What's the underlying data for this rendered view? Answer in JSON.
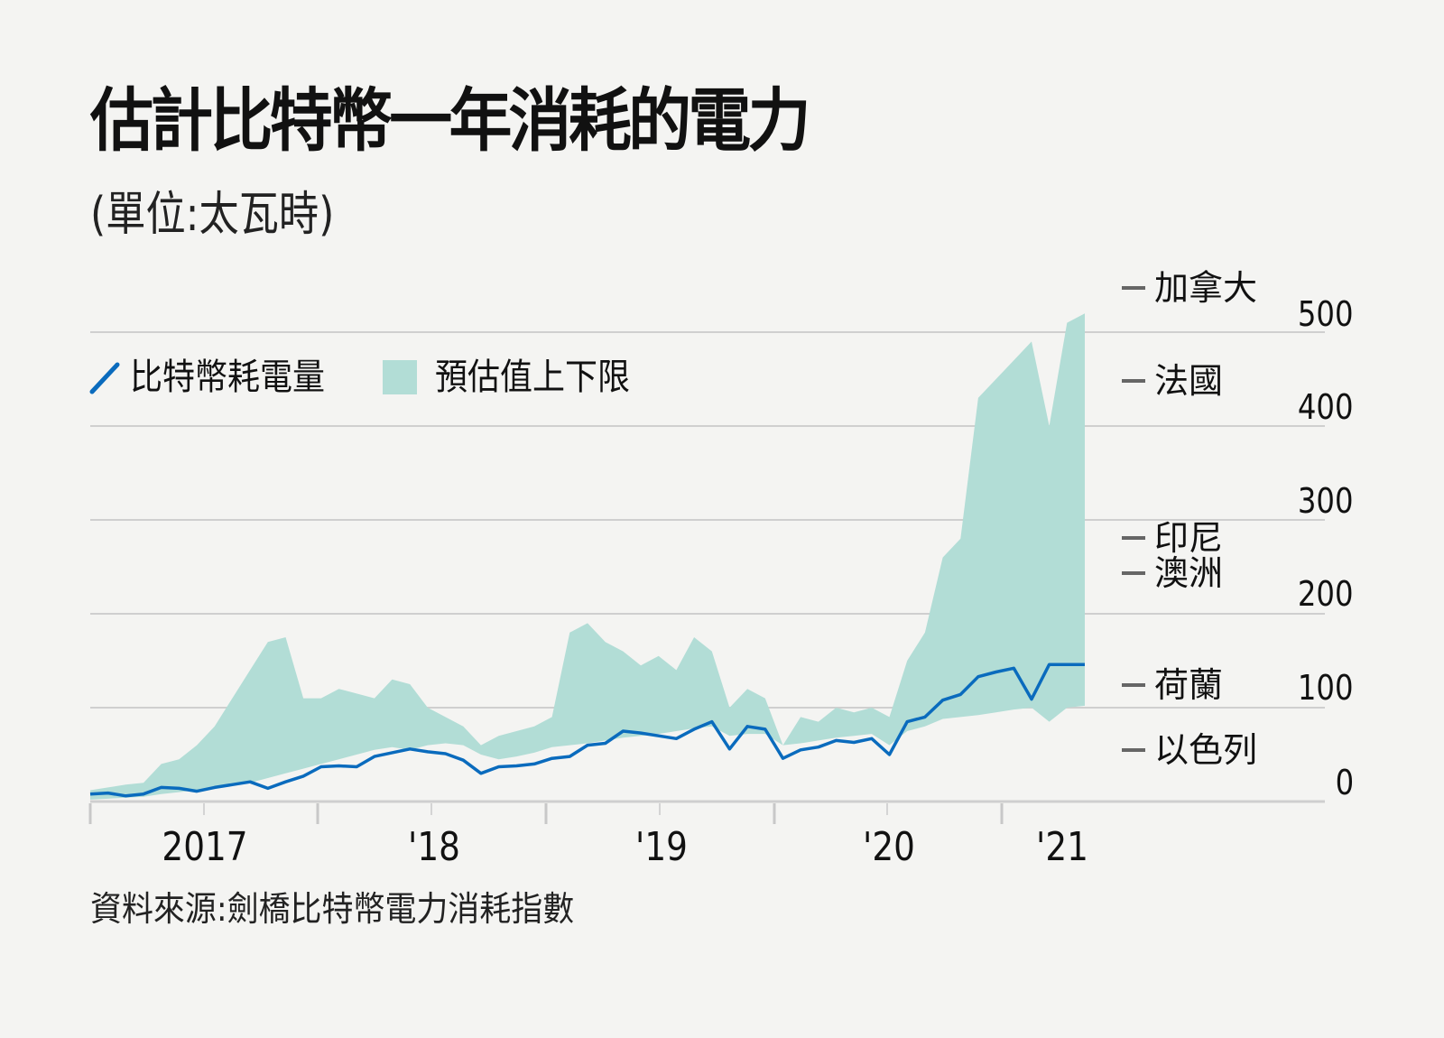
{
  "title": "估計比特幣一年消耗的電力",
  "subtitle": "(單位:太瓦時)",
  "legend": {
    "line_label": "比特幣耗電量",
    "area_label": "預估值上下限",
    "line_icon": "diagonal-line-swatch",
    "area_icon": "square-swatch"
  },
  "colors": {
    "background": "#f4f4f2",
    "line": "#0a6bbd",
    "band": "#b2ddd6",
    "grid": "#cfcfcf",
    "reference_dash": "#666666"
  },
  "y_axis": {
    "ticks": [
      "0",
      "100",
      "200",
      "300",
      "400",
      "500"
    ]
  },
  "x_axis": {
    "labels": [
      "2017",
      "'18",
      "'19",
      "'20",
      "'21"
    ]
  },
  "reference_countries": [
    {
      "name": "加拿大",
      "value": 530
    },
    {
      "name": "法國",
      "value": 450
    },
    {
      "name": "印尼",
      "value": 280
    },
    {
      "name": "澳洲",
      "value": 245
    },
    {
      "name": "荷蘭",
      "value": 120
    },
    {
      "name": "以色列",
      "value": 55
    }
  ],
  "source": "資料來源:劍橋比特幣電力消耗指數",
  "chart_data": {
    "type": "area",
    "title": "估計比特幣一年消耗的電力",
    "subtitle": "(單位:太瓦時)",
    "xlabel": "",
    "ylabel": "太瓦時 (TWh)",
    "ylim": [
      0,
      500
    ],
    "grid": true,
    "legend_position": "top-left",
    "x_tick_labels": [
      "2017",
      "'18",
      "'19",
      "'20",
      "'21"
    ],
    "x_range": [
      "2016-08",
      "2021-05"
    ],
    "series": [
      {
        "name": "比特幣耗電量",
        "type": "line",
        "x": [
          "2016-08",
          "2016-09",
          "2016-10",
          "2016-12",
          "2017-01",
          "2017-02",
          "2017-03",
          "2017-04",
          "2017-05",
          "2017-06",
          "2017-07",
          "2017-08",
          "2017-09",
          "2017-10",
          "2017-11",
          "2017-12",
          "2018-01",
          "2018-02",
          "2018-03",
          "2018-04",
          "2018-05",
          "2018-06",
          "2018-07",
          "2018-08",
          "2018-09",
          "2018-10",
          "2018-11",
          "2018-12",
          "2019-01",
          "2019-02",
          "2019-03",
          "2019-04",
          "2019-05",
          "2019-06",
          "2019-07",
          "2019-08",
          "2019-09",
          "2019-10",
          "2019-11",
          "2019-12",
          "2020-01",
          "2020-02",
          "2020-03",
          "2020-04",
          "2020-05",
          "2020-06",
          "2020-07",
          "2020-08",
          "2020-09",
          "2020-10",
          "2020-11",
          "2020-12",
          "2021-01",
          "2021-02",
          "2021-03",
          "2021-04",
          "2021-05"
        ],
        "values": [
          8,
          9,
          6,
          8,
          15,
          14,
          11,
          15,
          18,
          21,
          14,
          21,
          27,
          37,
          38,
          37,
          48,
          52,
          56,
          53,
          51,
          44,
          30,
          37,
          38,
          40,
          46,
          48,
          60,
          62,
          75,
          73,
          70,
          67,
          77,
          85,
          56,
          80,
          77,
          46,
          55,
          58,
          65,
          63,
          67,
          50,
          85,
          90,
          108,
          114,
          133,
          138,
          142,
          109,
          146,
          146,
          146
        ]
      },
      {
        "name": "預估值上下限",
        "type": "band",
        "upper": [
          12,
          15,
          18,
          20,
          40,
          45,
          60,
          80,
          110,
          140,
          170,
          175,
          110,
          110,
          120,
          115,
          110,
          130,
          125,
          100,
          90,
          80,
          60,
          70,
          75,
          80,
          90,
          180,
          190,
          170,
          160,
          145,
          155,
          140,
          175,
          160,
          100,
          120,
          110,
          60,
          90,
          85,
          100,
          95,
          100,
          90,
          150,
          180,
          260,
          280,
          430,
          450,
          470,
          490,
          400,
          510,
          520
        ],
        "lower": [
          2,
          3,
          4,
          5,
          8,
          10,
          12,
          16,
          18,
          20,
          25,
          30,
          35,
          40,
          45,
          50,
          55,
          58,
          55,
          60,
          62,
          60,
          50,
          45,
          48,
          52,
          58,
          60,
          62,
          65,
          68,
          70,
          72,
          75,
          78,
          80,
          70,
          72,
          72,
          60,
          62,
          65,
          68,
          70,
          72,
          60,
          75,
          80,
          88,
          90,
          92,
          95,
          98,
          100,
          85,
          100,
          102
        ]
      }
    ],
    "reference_lines": [
      {
        "label": "加拿大",
        "value": 530
      },
      {
        "label": "法國",
        "value": 450
      },
      {
        "label": "印尼",
        "value": 280
      },
      {
        "label": "澳洲",
        "value": 245
      },
      {
        "label": "荷蘭",
        "value": 120
      },
      {
        "label": "以色列",
        "value": 55
      }
    ]
  }
}
